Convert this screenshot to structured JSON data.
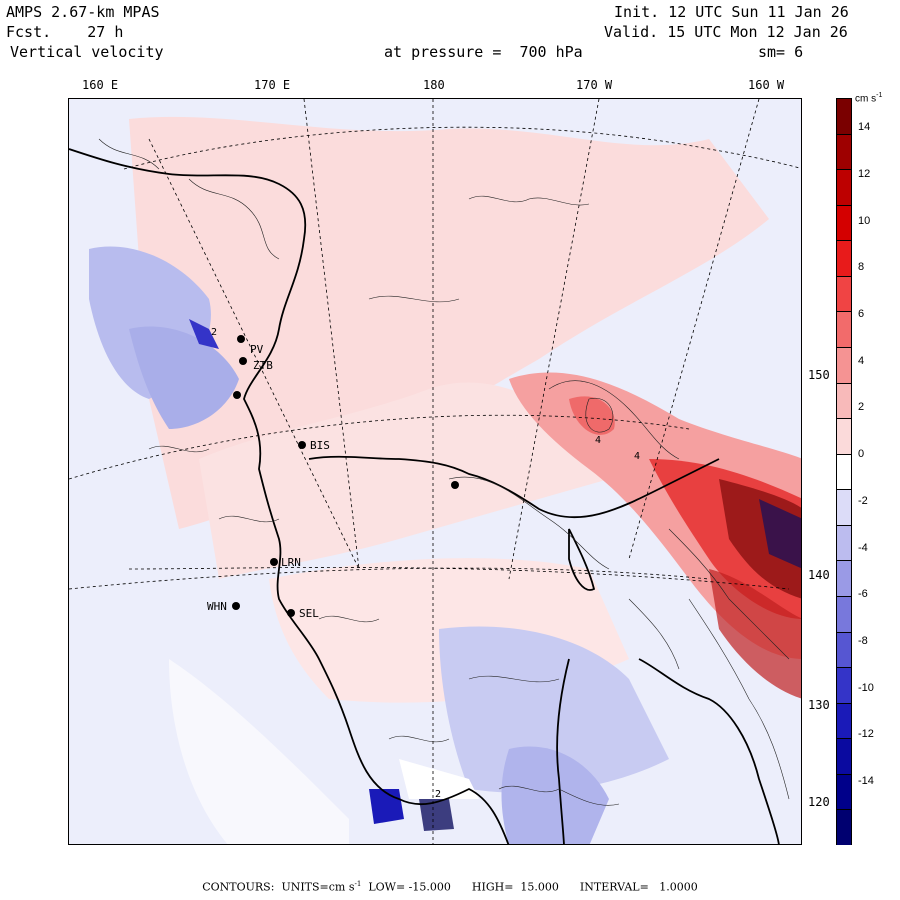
{
  "header": {
    "model": "AMPS 2.67-km MPAS",
    "fcst": "Fcst.    27 h",
    "field": "Vertical velocity",
    "init": "Init. 12 UTC Sun 11 Jan 26",
    "valid": "Valid. 15 UTC Mon 12 Jan 26",
    "pressure": "at pressure =  700 hPa",
    "smooth": "sm= 6"
  },
  "lon_labels": [
    "160 E",
    "170 E",
    "180",
    "170 W",
    "160 W"
  ],
  "lat_labels": [
    "150 W",
    "140 W",
    "130 W",
    "120 W"
  ],
  "stations": [
    "PV",
    "ZTB",
    "BIS",
    "LRN",
    "WHN",
    "SEL"
  ],
  "contour_labels": [
    "4",
    "4",
    "2",
    "2"
  ],
  "colorbar": {
    "unit_prefix": "cm s",
    "unit_exp": "-1",
    "ticks": [
      "14",
      "12",
      "10",
      "8",
      "6",
      "4",
      "2",
      "0",
      "-2",
      "-4",
      "-6",
      "-8",
      "-10",
      "-12",
      "-14"
    ],
    "colors": [
      "#7a0000",
      "#9e0000",
      "#bd0000",
      "#d40000",
      "#e81b1b",
      "#f04444",
      "#f26b6b",
      "#f59393",
      "#f8baba",
      "#fbdada",
      "#ffffff",
      "#dcdcf8",
      "#bcbcef",
      "#9a9ae6",
      "#7878dc",
      "#5656d2",
      "#3434c8",
      "#1a1ab8",
      "#0a0aa0",
      "#00008a",
      "#000070"
    ]
  },
  "footer": {
    "contours": "CONTOURS:",
    "units": "UNITS=cm s",
    "units_exp": "-1",
    "low": "LOW= -15.000",
    "high": "HIGH=  15.000",
    "interval": "INTERVAL=   1.0000"
  }
}
